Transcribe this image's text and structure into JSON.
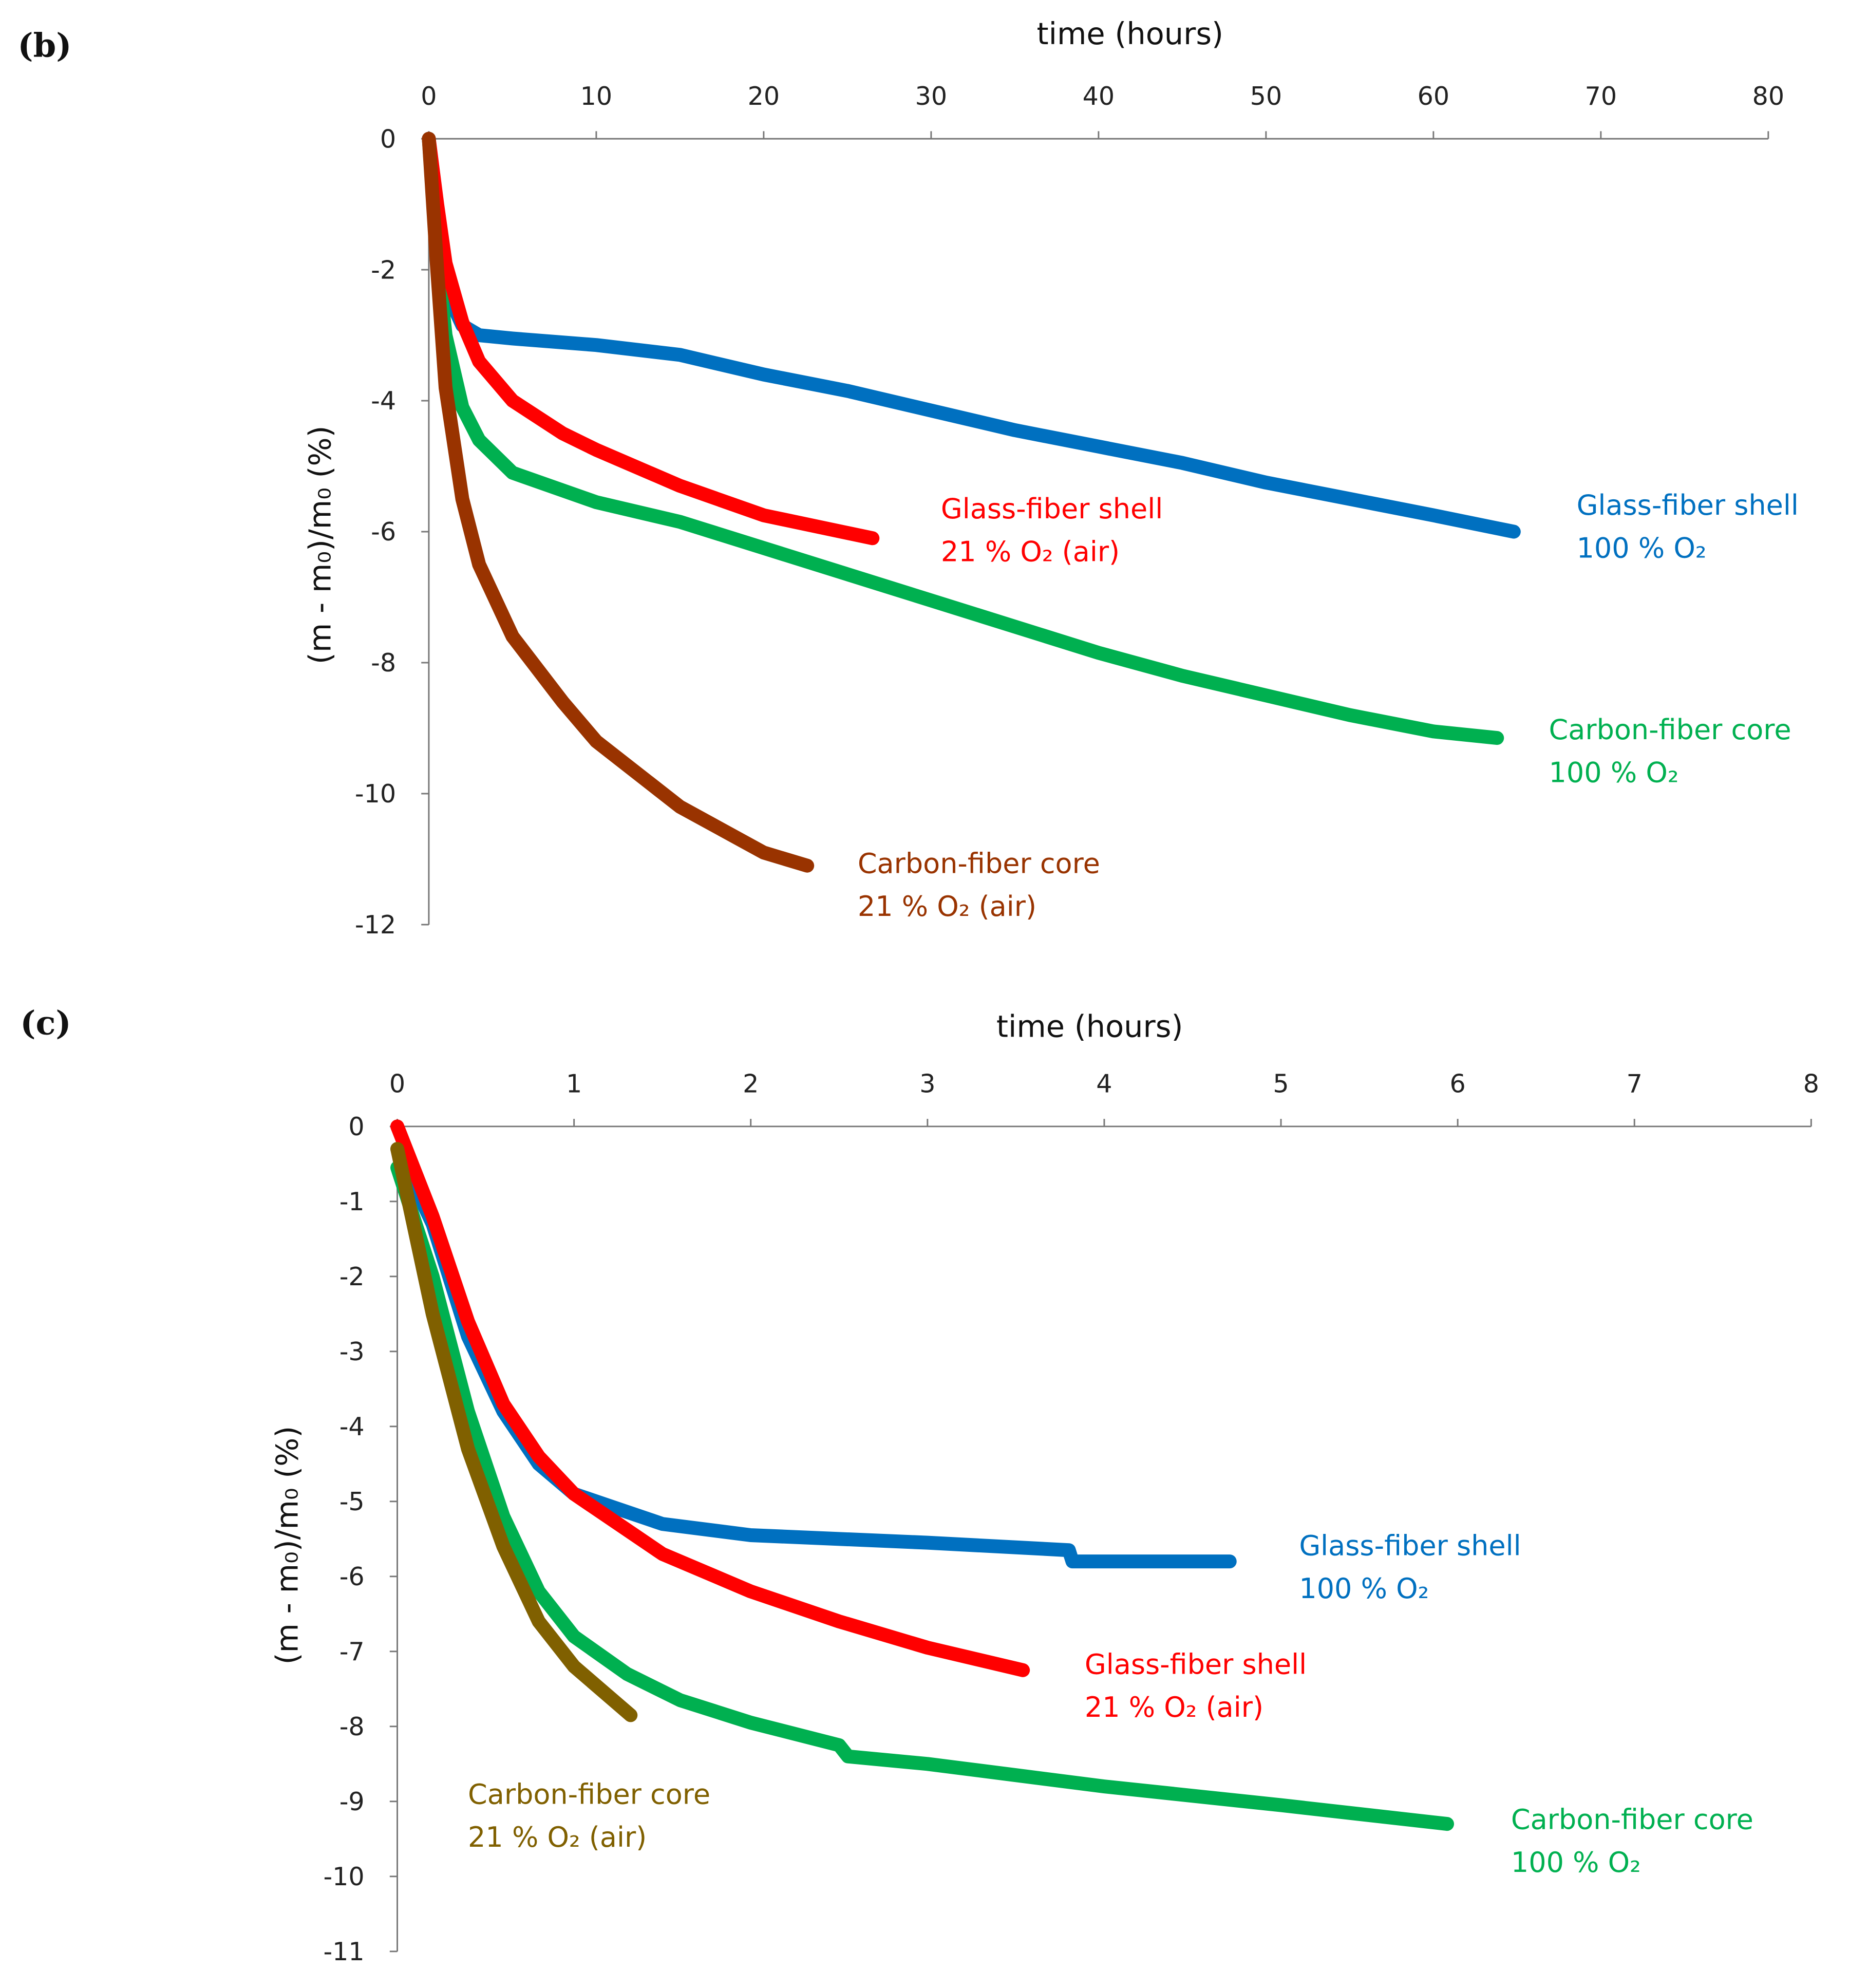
{
  "chart_data": [
    {
      "type": "line",
      "panel_label": "(b)",
      "xlabel": "time (hours)",
      "ylabel": "(m - m₀)/m₀ (%)",
      "xlim": [
        0,
        80
      ],
      "xticks": [
        0,
        10,
        20,
        30,
        40,
        50,
        60,
        70,
        80
      ],
      "ylim": [
        -12,
        0
      ],
      "yticks": [
        0,
        -2,
        -4,
        -6,
        -8,
        -10,
        -12
      ],
      "grid": false,
      "series": [
        {
          "name": "Glass-fiber shell 100 % O₂",
          "label_lines": [
            "Glass-fiber shell",
            "100 % O₂"
          ],
          "color": "#0070C0",
          "x": [
            0,
            0.5,
            1,
            2,
            3,
            5,
            10,
            15,
            20,
            25,
            30,
            35,
            40,
            45,
            50,
            55,
            60,
            64.8
          ],
          "y": [
            0,
            -1.5,
            -2.3,
            -2.85,
            -3.0,
            -3.05,
            -3.15,
            -3.3,
            -3.6,
            -3.85,
            -4.15,
            -4.45,
            -4.7,
            -4.95,
            -5.25,
            -5.5,
            -5.75,
            -6.0
          ]
        },
        {
          "name": "Carbon-fiber core 100 % O₂",
          "label_lines": [
            "Carbon-fiber core",
            "100 % O₂"
          ],
          "color": "#00B050",
          "x": [
            0,
            0.5,
            1,
            2,
            3,
            5,
            10,
            15,
            20,
            25,
            30,
            35,
            40,
            45,
            50,
            55,
            60,
            63.8
          ],
          "y": [
            0,
            -1.8,
            -3.0,
            -4.1,
            -4.6,
            -5.1,
            -5.55,
            -5.85,
            -6.25,
            -6.65,
            -7.05,
            -7.45,
            -7.85,
            -8.2,
            -8.5,
            -8.8,
            -9.05,
            -9.15
          ]
        },
        {
          "name": "Glass-fiber shell 21 % O₂ (air)",
          "label_lines": [
            "Glass-fiber shell",
            "21 % O₂ (air)"
          ],
          "color": "#FF0000",
          "x": [
            0,
            0.5,
            1,
            2,
            3,
            5,
            8,
            10,
            15,
            20,
            26.5
          ],
          "y": [
            0,
            -1.0,
            -1.9,
            -2.8,
            -3.4,
            -4.0,
            -4.5,
            -4.75,
            -5.3,
            -5.75,
            -6.1
          ]
        },
        {
          "name": "Carbon-fiber core 21 % O₂ (air)",
          "label_lines": [
            "Carbon-fiber core",
            "21 % O₂ (air)"
          ],
          "color": "#993300",
          "x": [
            0,
            0.5,
            1,
            2,
            3,
            5,
            8,
            10,
            15,
            20,
            22.6
          ],
          "y": [
            0,
            -2.0,
            -3.8,
            -5.5,
            -6.5,
            -7.6,
            -8.6,
            -9.2,
            -10.2,
            -10.9,
            -11.1
          ]
        }
      ]
    },
    {
      "type": "line",
      "panel_label": "(c)",
      "xlabel": "time (hours)",
      "ylabel": "(m - m₀)/m₀ (%)",
      "xlim": [
        0,
        8
      ],
      "xticks": [
        0,
        1,
        2,
        3,
        4,
        5,
        6,
        7,
        8
      ],
      "ylim": [
        -11,
        0
      ],
      "yticks": [
        0,
        -1,
        -2,
        -3,
        -4,
        -5,
        -6,
        -7,
        -8,
        -9,
        -10,
        -11
      ],
      "grid": false,
      "series": [
        {
          "name": "Glass-fiber shell 100 % O₂",
          "label_lines": [
            "Glass-fiber shell",
            "100 % O₂"
          ],
          "color": "#0070C0",
          "x": [
            0,
            0.2,
            0.4,
            0.6,
            0.8,
            1,
            1.5,
            2,
            3,
            3.8,
            3.82,
            4.71
          ],
          "y": [
            -0.3,
            -1.3,
            -2.8,
            -3.8,
            -4.5,
            -4.9,
            -5.3,
            -5.45,
            -5.55,
            -5.65,
            -5.8,
            -5.8
          ]
        },
        {
          "name": "Carbon-fiber core 100 % O₂",
          "label_lines": [
            "Carbon-fiber core",
            "100 % O₂"
          ],
          "color": "#00B050",
          "x": [
            0,
            0.2,
            0.4,
            0.6,
            0.8,
            1,
            1.3,
            1.6,
            2,
            2.5,
            2.55,
            3,
            3.5,
            4,
            5,
            5.94
          ],
          "y": [
            -0.55,
            -2.0,
            -3.8,
            -5.2,
            -6.2,
            -6.8,
            -7.3,
            -7.65,
            -7.95,
            -8.25,
            -8.4,
            -8.5,
            -8.65,
            -8.8,
            -9.05,
            -9.3
          ]
        },
        {
          "name": "Glass-fiber shell 21 % O₂ (air)",
          "label_lines": [
            "Glass-fiber shell",
            "21 % O₂ (air)"
          ],
          "color": "#FF0000",
          "x": [
            0,
            0.2,
            0.4,
            0.6,
            0.8,
            1,
            1.5,
            2,
            2.5,
            3,
            3.54
          ],
          "y": [
            0,
            -1.2,
            -2.6,
            -3.7,
            -4.4,
            -4.9,
            -5.7,
            -6.2,
            -6.6,
            -6.95,
            -7.25
          ]
        },
        {
          "name": "Carbon-fiber core 21 % O₂ (air)",
          "label_lines": [
            "Carbon-fiber core",
            "21 % O₂ (air)"
          ],
          "color": "#806000",
          "x": [
            0,
            0.2,
            0.4,
            0.6,
            0.8,
            1,
            1.32
          ],
          "y": [
            -0.3,
            -2.5,
            -4.3,
            -5.6,
            -6.6,
            -7.2,
            -7.85
          ]
        }
      ]
    }
  ]
}
